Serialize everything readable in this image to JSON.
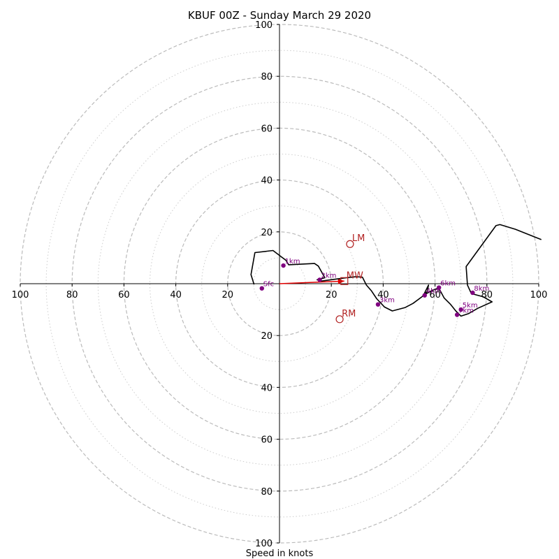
{
  "chart_data": {
    "type": "hodograph",
    "title": "KBUF 00Z - Sunday March 29 2020",
    "xlabel": "Speed in knots",
    "rings_major": [
      20,
      40,
      60,
      80,
      100
    ],
    "rings_minor": [
      10,
      30,
      50,
      70,
      90
    ],
    "tick_labels": [
      "100",
      "80",
      "60",
      "40",
      "20",
      "20",
      "40",
      "60",
      "80",
      "100"
    ],
    "axis_range": [
      -100,
      100
    ],
    "colors": {
      "grid_major": "#bbbbbb",
      "grid_minor": "#cccccc",
      "trace": "#000000",
      "km_points": "#800080",
      "motion": "#b22222",
      "arrow": "#e00000"
    },
    "trace": [
      [
        -9.8,
        -0.3
      ],
      [
        -11.0,
        3.5
      ],
      [
        -9.5,
        12.0
      ],
      [
        -2.5,
        12.8
      ],
      [
        2.5,
        9.0
      ],
      [
        3.5,
        7.3
      ],
      [
        13.5,
        7.8
      ],
      [
        15.0,
        6.8
      ],
      [
        17.5,
        2.3
      ],
      [
        14.5,
        1.5
      ],
      [
        16.0,
        1.0
      ],
      [
        25.0,
        2.2
      ],
      [
        29.5,
        2.7
      ],
      [
        32.0,
        2.5
      ],
      [
        33.5,
        -0.5
      ],
      [
        35.5,
        -2.8
      ],
      [
        37.5,
        -5.8
      ],
      [
        40.5,
        -9.0
      ],
      [
        43.5,
        -10.5
      ],
      [
        48.5,
        -9.2
      ],
      [
        51.5,
        -7.6
      ],
      [
        55.0,
        -5.0
      ],
      [
        57.0,
        -3.0
      ],
      [
        57.5,
        -0.5
      ],
      [
        56.5,
        -2.5
      ],
      [
        55.5,
        -4.5
      ],
      [
        59.0,
        -2.5
      ],
      [
        61.0,
        -1.8
      ],
      [
        62.0,
        -2.7
      ],
      [
        63.5,
        -5.5
      ],
      [
        66.0,
        -8.0
      ],
      [
        68.0,
        -10.5
      ],
      [
        70.0,
        -12.5
      ],
      [
        73.0,
        -11.5
      ],
      [
        76.5,
        -9.5
      ],
      [
        82.0,
        -7.0
      ],
      [
        78.5,
        -5.0
      ],
      [
        74.0,
        -3.8
      ],
      [
        72.5,
        -0.5
      ],
      [
        72.0,
        6.6
      ],
      [
        83.5,
        22.4
      ],
      [
        85.0,
        22.8
      ],
      [
        91.0,
        21.0
      ],
      [
        101.0,
        17.0
      ]
    ],
    "km_points": [
      {
        "label": "Sfc",
        "u": -6.8,
        "v": -1.8
      },
      {
        "label": "1km",
        "u": 1.5,
        "v": 7.0
      },
      {
        "label": "2km",
        "u": 15.5,
        "v": 1.5
      },
      {
        "label": "3km",
        "u": 38.0,
        "v": -8.0
      },
      {
        "label": "4km",
        "u": 56.0,
        "v": -4.5
      },
      {
        "label": "5km",
        "u": 70.0,
        "v": -10.0
      },
      {
        "label": "6km",
        "u": 61.5,
        "v": -1.5
      },
      {
        "label": "7km",
        "u": 68.5,
        "v": -12.0
      },
      {
        "label": "8km",
        "u": 74.5,
        "v": -3.5
      }
    ],
    "storm_motion": [
      {
        "label": "LM",
        "u": 27.2,
        "v": 15.3,
        "marker": "circle"
      },
      {
        "label": "RM",
        "u": 23.2,
        "v": -13.7,
        "marker": "circle"
      },
      {
        "label": "MW",
        "u": 25.0,
        "v": 1.0,
        "marker": "square"
      }
    ],
    "arrow": {
      "from": [
        0,
        0
      ],
      "to": [
        25.0,
        1.0
      ]
    }
  }
}
